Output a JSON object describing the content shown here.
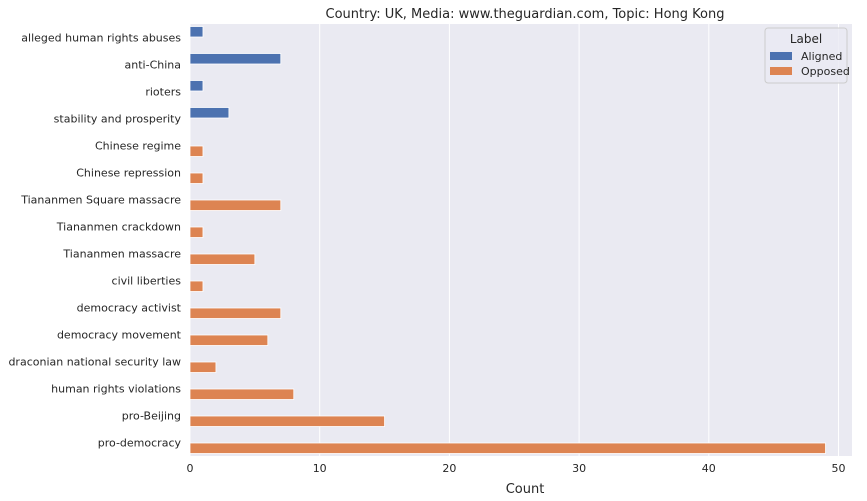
{
  "chart_data": {
    "type": "bar",
    "orientation": "horizontal",
    "title": "Country: UK, Media: www.theguardian.com, Topic: Hong Kong",
    "xlabel": "Count",
    "ylabel": "",
    "xlim": [
      0,
      50
    ],
    "xticks": [
      0,
      10,
      20,
      30,
      40,
      50
    ],
    "grid": true,
    "legend": {
      "title": "Label",
      "placement": "top-right"
    },
    "categories": [
      "alleged human rights abuses",
      "anti-China",
      "rioters",
      "stability and prosperity",
      "Chinese regime",
      "Chinese repression",
      "Tiananmen Square massacre",
      "Tiananmen crackdown",
      "Tiananmen massacre",
      "civil liberties",
      "democracy activist",
      "democracy movement",
      "draconian national security law",
      "human rights violations",
      "pro-Beijing",
      "pro-democracy"
    ],
    "series": [
      {
        "name": "Aligned",
        "color": "#4c72b0",
        "values": [
          1,
          7,
          1,
          3,
          null,
          null,
          null,
          null,
          null,
          null,
          null,
          null,
          null,
          null,
          null,
          null
        ]
      },
      {
        "name": "Opposed",
        "color": "#dd8452",
        "values": [
          null,
          null,
          null,
          null,
          1,
          1,
          7,
          1,
          5,
          1,
          7,
          6,
          2,
          8,
          15,
          49
        ]
      }
    ]
  }
}
